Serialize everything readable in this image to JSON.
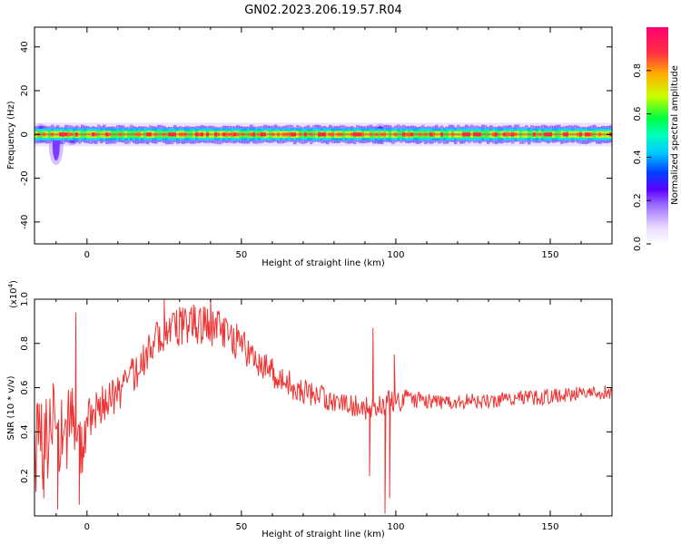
{
  "title": "GN02.2023.206.19.57.R04",
  "chart_data": [
    {
      "type": "heatmap",
      "xlabel": "Height of straight line (km)",
      "ylabel": "Frequency (Hz)",
      "xlim": [
        -17,
        170
      ],
      "ylim": [
        -50,
        49
      ],
      "xticks": [
        0,
        50,
        100,
        150
      ],
      "yticks": [
        -40,
        -20,
        0,
        20,
        40
      ],
      "colorbar": {
        "label": "Normalized spectral amplitude",
        "range": [
          0,
          1
        ],
        "ticks": [
          0.0,
          0.2,
          0.4,
          0.6,
          0.8
        ],
        "tick_labels": [
          "0.0",
          "0.2",
          "0.4",
          "0.6",
          "0.8"
        ],
        "colormap": [
          "#ffffff",
          "#e6d7ff",
          "#9a6cff",
          "#5a00ff",
          "#0040ff",
          "#00e0ff",
          "#00ff60",
          "#c8ff00",
          "#ffb000",
          "#ff3040",
          "#ff0070"
        ]
      },
      "band_center_hz": 0,
      "band_halfwidth_hz": 3,
      "disturbance_hz_at_x": [
        {
          "x": -15,
          "low_hz": -4,
          "high_hz": 5
        },
        {
          "x": -10,
          "low_hz": -14,
          "high_hz": 4
        },
        {
          "x": -5,
          "low_hz": -5,
          "high_hz": 3
        },
        {
          "x": 95,
          "low_hz": -4,
          "high_hz": 5
        }
      ]
    },
    {
      "type": "line",
      "xlabel": "Height of straight line (km)",
      "ylabel": "SNR (10 * v/v)",
      "y_multiplier_label": "(x10",
      "y_multiplier_exp": "4",
      "y_multiplier_close": ")",
      "xlim": [
        -17,
        170
      ],
      "ylim": [
        0.02,
        1.0
      ],
      "xticks": [
        0,
        50,
        100,
        150
      ],
      "yticks": [
        0.2,
        0.4,
        0.6,
        0.8,
        1.0
      ],
      "ytick_labels": [
        "0.2",
        "0.4",
        "0.6",
        "0.8",
        "1.0"
      ],
      "color": "#ee3333",
      "trend": {
        "x": [
          -17,
          -14,
          -11,
          -8,
          -5,
          -2,
          0,
          3,
          6,
          10,
          15,
          20,
          25,
          30,
          35,
          40,
          45,
          50,
          55,
          60,
          65,
          70,
          75,
          80,
          85,
          90,
          92,
          95,
          98,
          100,
          105,
          110,
          120,
          130,
          140,
          150,
          160,
          170
        ],
        "y": [
          0.3,
          0.35,
          0.4,
          0.38,
          0.45,
          0.3,
          0.44,
          0.5,
          0.53,
          0.57,
          0.66,
          0.76,
          0.84,
          0.88,
          0.9,
          0.88,
          0.85,
          0.79,
          0.73,
          0.67,
          0.62,
          0.58,
          0.56,
          0.54,
          0.52,
          0.51,
          0.5,
          0.52,
          0.53,
          0.54,
          0.55,
          0.54,
          0.54,
          0.54,
          0.55,
          0.56,
          0.57,
          0.58
        ]
      },
      "noise_amplitude": {
        "x": [
          -17,
          -5,
          0,
          10,
          20,
          40,
          60,
          80,
          88,
          92,
          100,
          105,
          120,
          170
        ],
        "y": [
          0.22,
          0.18,
          0.1,
          0.08,
          0.1,
          0.1,
          0.07,
          0.05,
          0.05,
          0.06,
          0.06,
          0.04,
          0.035,
          0.035
        ]
      },
      "spikes": [
        {
          "x": -14,
          "y": 0.1
        },
        {
          "x": -11,
          "y": 0.62
        },
        {
          "x": -9.5,
          "y": 0.05
        },
        {
          "x": -7.5,
          "y": 0.4
        },
        {
          "x": -4.5,
          "y": 0.52
        },
        {
          "x": -3.6,
          "y": 0.94
        },
        {
          "x": -2.5,
          "y": 0.07
        },
        {
          "x": 25,
          "y": 1.0
        },
        {
          "x": 40,
          "y": 1.0
        },
        {
          "x": 91.5,
          "y": 0.2
        },
        {
          "x": 92.6,
          "y": 0.87
        },
        {
          "x": 96.5,
          "y": 0.03
        },
        {
          "x": 98,
          "y": 0.1
        },
        {
          "x": 99.5,
          "y": 0.75
        }
      ]
    }
  ]
}
